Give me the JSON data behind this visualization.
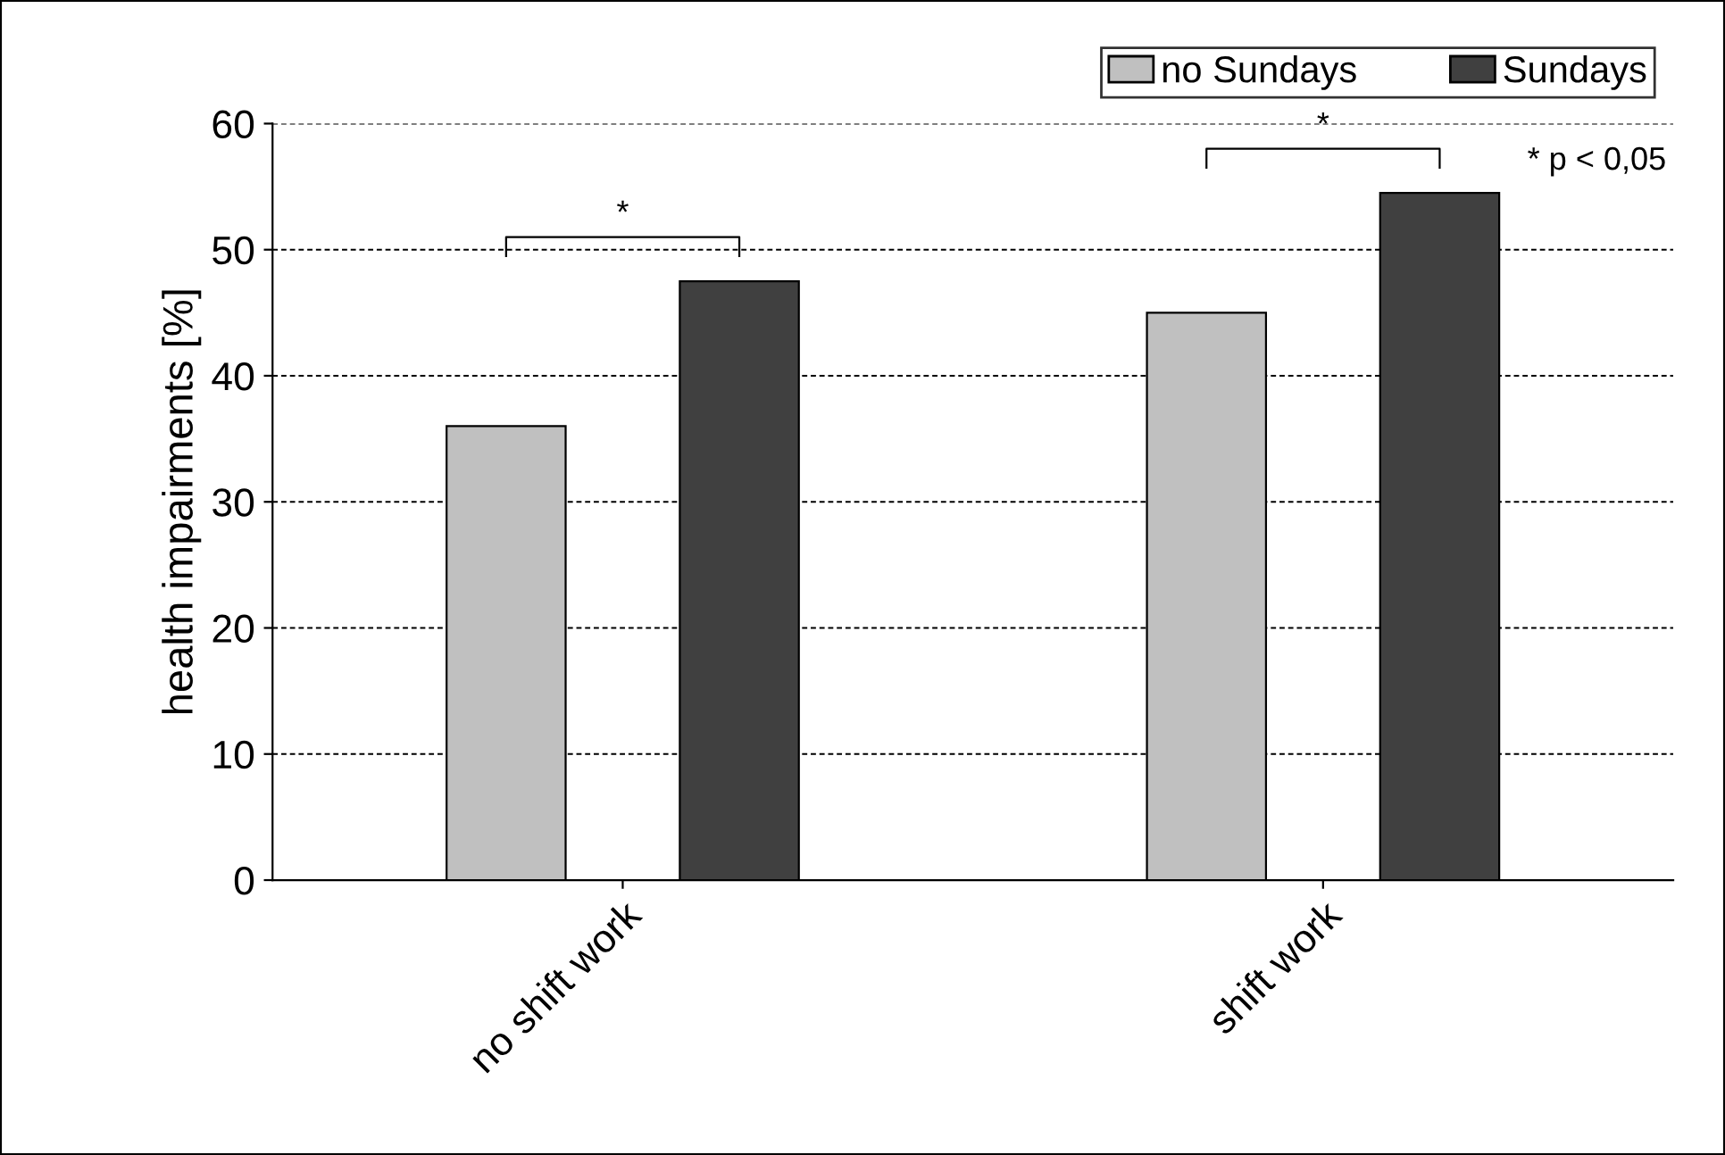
{
  "chart_data": {
    "type": "bar",
    "ylabel": "health impairments [%]",
    "categories": [
      "no shift work",
      "shift work"
    ],
    "series": [
      {
        "name": "no Sundays",
        "color": "#c0c0c0",
        "values": [
          36,
          45
        ]
      },
      {
        "name": "Sundays",
        "color": "#404040",
        "values": [
          47.5,
          54.5
        ]
      }
    ],
    "ylim": [
      0,
      60
    ],
    "yticks": [
      0,
      10,
      20,
      30,
      40,
      50,
      60
    ],
    "grid": "y",
    "legend": "top right",
    "annotations": [
      "*",
      "*",
      "* p < 0,05"
    ]
  }
}
